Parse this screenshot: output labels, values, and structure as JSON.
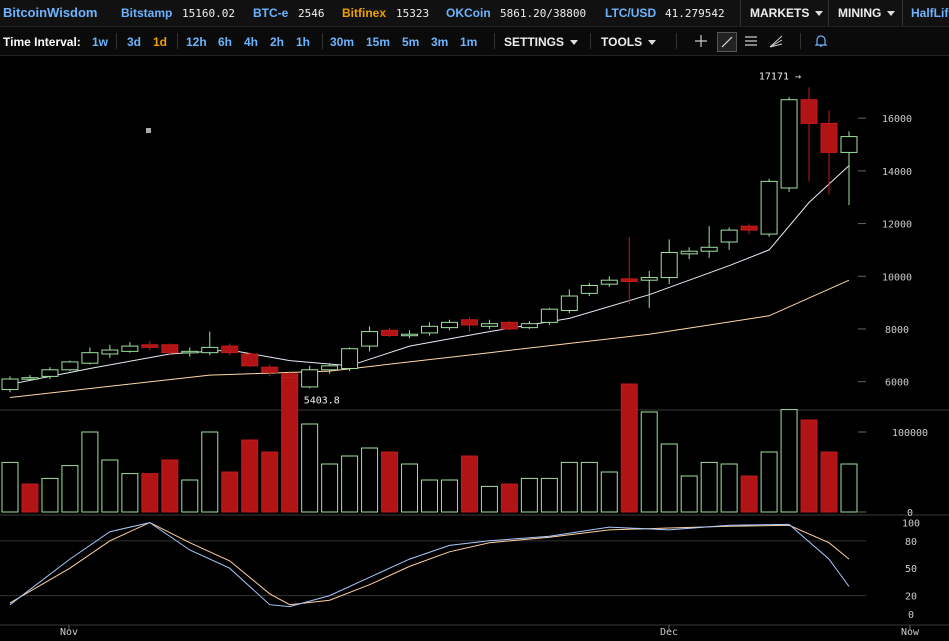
{
  "topbar": {
    "brand": "BitcoinWisdom",
    "markets": [
      {
        "name": "Bitstamp",
        "price": "15160.02",
        "accent": false
      },
      {
        "name": "BTC-e",
        "price": "2546",
        "accent": false
      },
      {
        "name": "Bitfinex",
        "price": "15323",
        "accent": true
      },
      {
        "name": "OKCoin",
        "price": "5861.20/38800",
        "accent": false
      },
      {
        "name": "LTC/USD",
        "price": "41.279542",
        "accent": false
      }
    ],
    "menus": {
      "markets": "MARKETS",
      "mining": "MINING",
      "halflife": "HalfLife"
    }
  },
  "toolbar": {
    "interval_label": "Time Interval:",
    "intervals": [
      "1w",
      "3d",
      "1d",
      "12h",
      "6h",
      "4h",
      "2h",
      "1h",
      "30m",
      "15m",
      "5m",
      "3m",
      "1m"
    ],
    "active_interval": "1d",
    "settings": "SETTINGS",
    "tools": "TOOLS",
    "tool_icons": [
      "crosshair-icon",
      "line-draw-icon",
      "fib-icon",
      "fan-icon",
      "bell-icon"
    ]
  },
  "colors": {
    "up": "#9fe29f",
    "down": "#b01414",
    "ma_fast": "#e8ecf8",
    "ma_slow": "#ffd9a8",
    "stoch_k": "#a8c8ff",
    "stoch_d": "#ffd0a0",
    "accent": "#6cb4ff",
    "active": "#f0a000"
  },
  "chart_data": {
    "type": "candlestick",
    "price_axis": {
      "ticks": [
        6000,
        8000,
        10000,
        12000,
        14000,
        16000
      ],
      "range": [
        5000,
        17600
      ]
    },
    "volume_axis": {
      "ticks": [
        "0",
        "100000"
      ],
      "range": [
        0,
        125000
      ]
    },
    "stoch_axis": {
      "ticks": [
        "0",
        "20",
        "50",
        "80",
        "100"
      ],
      "range": [
        -10,
        105
      ]
    },
    "x_labels": [
      "Nov",
      "Dec",
      "Now"
    ],
    "annotations": {
      "high": "17171",
      "low": "5403.8"
    },
    "candles": [
      [
        5700,
        6100,
        5600,
        6200
      ],
      [
        6100,
        6150,
        6050,
        6250
      ],
      [
        6200,
        6450,
        6100,
        6550
      ],
      [
        6450,
        6750,
        6400,
        6800
      ],
      [
        6700,
        7100,
        6650,
        7300
      ],
      [
        7050,
        7200,
        6900,
        7400
      ],
      [
        7150,
        7350,
        7100,
        7500
      ],
      [
        7400,
        7300,
        7200,
        7550
      ],
      [
        7400,
        7100,
        7000,
        7450
      ],
      [
        7100,
        7150,
        6950,
        7300
      ],
      [
        7100,
        7300,
        7000,
        7900
      ],
      [
        7350,
        7100,
        7000,
        7450
      ],
      [
        7050,
        6600,
        6550,
        7100
      ],
      [
        6550,
        6350,
        6200,
        6650
      ],
      [
        6300,
        5800,
        5400,
        6400
      ],
      [
        5800,
        6450,
        5750,
        6600
      ],
      [
        6450,
        6600,
        6300,
        6700
      ],
      [
        6500,
        7250,
        6400,
        7300
      ],
      [
        7350,
        7900,
        7150,
        8100
      ],
      [
        7950,
        7750,
        7700,
        8050
      ],
      [
        7750,
        7800,
        7650,
        7950
      ],
      [
        7850,
        8100,
        7750,
        8250
      ],
      [
        8050,
        8250,
        7950,
        8350
      ],
      [
        8350,
        8150,
        7900,
        8450
      ],
      [
        8100,
        8200,
        8000,
        8350
      ],
      [
        8250,
        8000,
        7950,
        8300
      ],
      [
        8050,
        8200,
        8000,
        8300
      ],
      [
        8250,
        8750,
        8150,
        8800
      ],
      [
        8700,
        9250,
        8600,
        9500
      ],
      [
        9350,
        9650,
        9250,
        9750
      ],
      [
        9700,
        9850,
        9600,
        10000
      ],
      [
        9900,
        9800,
        8950,
        11500
      ],
      [
        9850,
        9950,
        8800,
        10200
      ],
      [
        9950,
        10900,
        9700,
        11400
      ],
      [
        10850,
        10950,
        10650,
        11100
      ],
      [
        10950,
        11100,
        10700,
        11900
      ],
      [
        11300,
        11750,
        11000,
        11850
      ],
      [
        11900,
        11750,
        11600,
        12000
      ],
      [
        11600,
        13600,
        11500,
        13700
      ],
      [
        13350,
        16700,
        13200,
        16800
      ],
      [
        16700,
        15800,
        13600,
        17171
      ],
      [
        15800,
        14700,
        13100,
        16300
      ],
      [
        14700,
        15300,
        12700,
        15500
      ]
    ],
    "ma_fast": [
      [
        0,
        5900
      ],
      [
        4,
        6500
      ],
      [
        8,
        7050
      ],
      [
        11,
        7200
      ],
      [
        14,
        6800
      ],
      [
        17,
        6600
      ],
      [
        20,
        7350
      ],
      [
        24,
        7900
      ],
      [
        28,
        8400
      ],
      [
        32,
        9300
      ],
      [
        36,
        10400
      ],
      [
        38,
        11000
      ],
      [
        40,
        12800
      ],
      [
        42,
        14200
      ]
    ],
    "ma_slow": [
      [
        0,
        5400
      ],
      [
        10,
        6250
      ],
      [
        16,
        6400
      ],
      [
        24,
        7100
      ],
      [
        32,
        7800
      ],
      [
        38,
        8500
      ],
      [
        42,
        9850
      ]
    ],
    "volume": [
      62000,
      35000,
      42000,
      58000,
      100000,
      65000,
      48000,
      48000,
      65000,
      40000,
      100000,
      50000,
      90000,
      75000,
      168000,
      110000,
      60000,
      70000,
      80000,
      75000,
      60000,
      40000,
      40000,
      70000,
      32000,
      35000,
      42000,
      42000,
      62000,
      62000,
      50000,
      160000,
      125000,
      85000,
      45000,
      62000,
      60000,
      45000,
      75000,
      128000,
      115000,
      75000,
      60000
    ],
    "volume_up": [
      true,
      false,
      true,
      true,
      true,
      true,
      true,
      false,
      false,
      true,
      true,
      false,
      false,
      false,
      false,
      true,
      true,
      true,
      true,
      false,
      true,
      true,
      true,
      false,
      true,
      false,
      true,
      true,
      true,
      true,
      true,
      false,
      true,
      true,
      true,
      true,
      true,
      false,
      true,
      true,
      false,
      false,
      true
    ],
    "stoch_k": [
      [
        0,
        10
      ],
      [
        3,
        60
      ],
      [
        5,
        90
      ],
      [
        7,
        100
      ],
      [
        9,
        70
      ],
      [
        11,
        50
      ],
      [
        13,
        10
      ],
      [
        14,
        8
      ],
      [
        16,
        20
      ],
      [
        18,
        40
      ],
      [
        20,
        60
      ],
      [
        22,
        75
      ],
      [
        24,
        80
      ],
      [
        27,
        85
      ],
      [
        30,
        95
      ],
      [
        33,
        92
      ],
      [
        36,
        97
      ],
      [
        39,
        98
      ],
      [
        41,
        60
      ],
      [
        42,
        30
      ]
    ],
    "stoch_d": [
      [
        0,
        12
      ],
      [
        3,
        50
      ],
      [
        5,
        80
      ],
      [
        7,
        100
      ],
      [
        9,
        78
      ],
      [
        11,
        58
      ],
      [
        13,
        22
      ],
      [
        14,
        10
      ],
      [
        16,
        15
      ],
      [
        18,
        32
      ],
      [
        20,
        52
      ],
      [
        22,
        68
      ],
      [
        24,
        78
      ],
      [
        27,
        84
      ],
      [
        30,
        92
      ],
      [
        33,
        94
      ],
      [
        36,
        96
      ],
      [
        39,
        97
      ],
      [
        41,
        78
      ],
      [
        42,
        60
      ]
    ]
  }
}
